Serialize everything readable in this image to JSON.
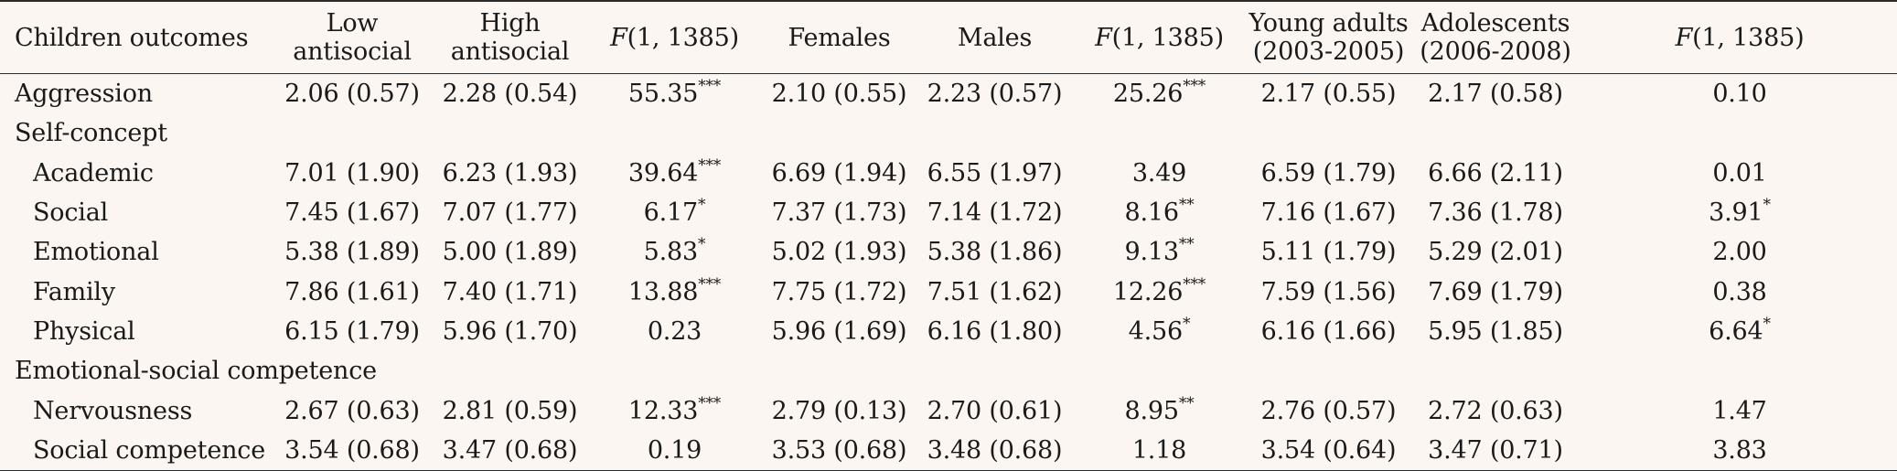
{
  "table": {
    "headers": {
      "outcomes": "Children outcomes",
      "low_antisocial": [
        "Low",
        "antisocial"
      ],
      "high_antisocial": [
        "High",
        "antisocial"
      ],
      "f1_italic": "F",
      "f1_rest": "(1, 1385)",
      "females": "Females",
      "males": "Males",
      "f2_italic": "F",
      "f2_rest": "(1, 1385)",
      "young_adults": [
        "Young adults",
        "(2003-2005)"
      ],
      "adolescents": [
        "Adolescents",
        "(2006-2008)"
      ],
      "f3_italic": "F",
      "f3_rest": "(1, 1385)"
    },
    "rows": [
      {
        "label": "Aggression",
        "low": "2.06 (0.57)",
        "high": "2.28 (0.54)",
        "f1": "55.35",
        "f1_sig": "***",
        "fem": "2.10 (0.55)",
        "male": "2.23 (0.57)",
        "f2": "25.26",
        "f2_sig": "***",
        "young": "2.17 (0.55)",
        "adol": "2.17 (0.58)",
        "f3": "0.10",
        "f3_sig": ""
      },
      {
        "label": "Self-concept"
      },
      {
        "label": "Academic",
        "low": "7.01 (1.90)",
        "high": "6.23 (1.93)",
        "f1": "39.64",
        "f1_sig": "***",
        "fem": "6.69 (1.94)",
        "male": "6.55 (1.97)",
        "f2": "3.49",
        "f2_sig": "",
        "young": "6.59 (1.79)",
        "adol": "6.66 (2.11)",
        "f3": "0.01",
        "f3_sig": ""
      },
      {
        "label": "Social",
        "low": "7.45 (1.67)",
        "high": "7.07 (1.77)",
        "f1": "6.17",
        "f1_sig": "*",
        "fem": "7.37 (1.73)",
        "male": "7.14 (1.72)",
        "f2": "8.16",
        "f2_sig": "**",
        "young": "7.16 (1.67)",
        "adol": "7.36 (1.78)",
        "f3": "3.91",
        "f3_sig": "*"
      },
      {
        "label": "Emotional",
        "low": "5.38 (1.89)",
        "high": "5.00 (1.89)",
        "f1": "5.83",
        "f1_sig": "*",
        "fem": "5.02 (1.93)",
        "male": "5.38 (1.86)",
        "f2": "9.13",
        "f2_sig": "**",
        "young": "5.11 (1.79)",
        "adol": "5.29 (2.01)",
        "f3": "2.00",
        "f3_sig": ""
      },
      {
        "label": "Family",
        "low": "7.86 (1.61)",
        "high": "7.40 (1.71)",
        "f1": "13.88",
        "f1_sig": "***",
        "fem": "7.75 (1.72)",
        "male": "7.51 (1.62)",
        "f2": "12.26",
        "f2_sig": "***",
        "young": "7.59 (1.56)",
        "adol": "7.69 (1.79)",
        "f3": "0.38",
        "f3_sig": ""
      },
      {
        "label": "Physical",
        "low": "6.15 (1.79)",
        "high": "5.96 (1.70)",
        "f1": "0.23",
        "f1_sig": "",
        "fem": "5.96 (1.69)",
        "male": "6.16 (1.80)",
        "f2": "4.56",
        "f2_sig": "*",
        "young": "6.16 (1.66)",
        "adol": "5.95 (1.85)",
        "f3": "6.64",
        "f3_sig": "*"
      },
      {
        "label": "Emotional-social competence"
      },
      {
        "label": "Nervousness",
        "low": "2.67 (0.63)",
        "high": "2.81 (0.59)",
        "f1": "12.33",
        "f1_sig": "***",
        "fem": "2.79 (0.13)",
        "male": "2.70 (0.61)",
        "f2": "8.95",
        "f2_sig": "**",
        "young": "2.76 (0.57)",
        "adol": "2.72 (0.63)",
        "f3": "1.47",
        "f3_sig": ""
      },
      {
        "label": "Social competence",
        "low": "3.54 (0.68)",
        "high": "3.47 (0.68)",
        "f1": "0.19",
        "f1_sig": "",
        "fem": "3.53 (0.68)",
        "male": "3.48 (0.68)",
        "f2": "1.18",
        "f2_sig": "",
        "young": "3.54 (0.64)",
        "adol": "3.47 (0.71)",
        "f3": "3.83",
        "f3_sig": ""
      }
    ]
  }
}
